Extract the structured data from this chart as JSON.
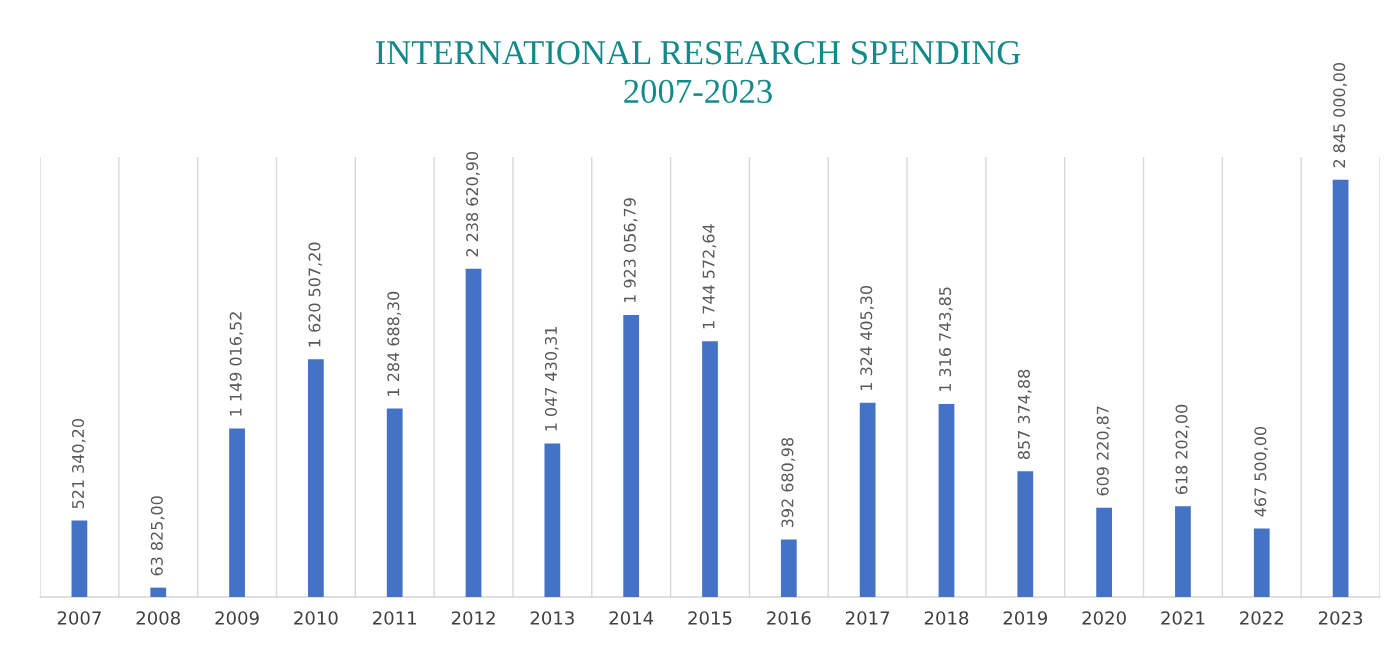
{
  "chart_data": {
    "type": "bar",
    "title": "INTERNATIONAL RESEARCH SPENDING\n2007-2023",
    "categories": [
      "2007",
      "2008",
      "2009",
      "2010",
      "2011",
      "2012",
      "2013",
      "2014",
      "2015",
      "2016",
      "2017",
      "2018",
      "2019",
      "2020",
      "2021",
      "2022",
      "2023"
    ],
    "values": [
      521340.2,
      63825.0,
      1149016.52,
      1620507.2,
      1284688.3,
      2238620.9,
      1047430.31,
      1923056.79,
      1744572.64,
      392680.98,
      1324405.3,
      1316743.85,
      857374.88,
      609220.87,
      618202.0,
      467500.0,
      2845000.0
    ],
    "value_labels": [
      "521 340,20",
      "63 825,00",
      "1 149 016,52",
      "1 620 507,20",
      "1 284 688,30",
      "2 238 620,90",
      "1 047 430,31",
      "1 923 056,79",
      "1 744 572,64",
      "392 680,98",
      "1 324 405,30",
      "1 316 743,85",
      "857 374,88",
      "609 220,87",
      "618 202,00",
      "467 500,00",
      "2 845 000,00"
    ],
    "color": "#4472c4",
    "ylim": [
      0,
      3000000
    ],
    "tick_labels": "x",
    "grid": "x"
  }
}
